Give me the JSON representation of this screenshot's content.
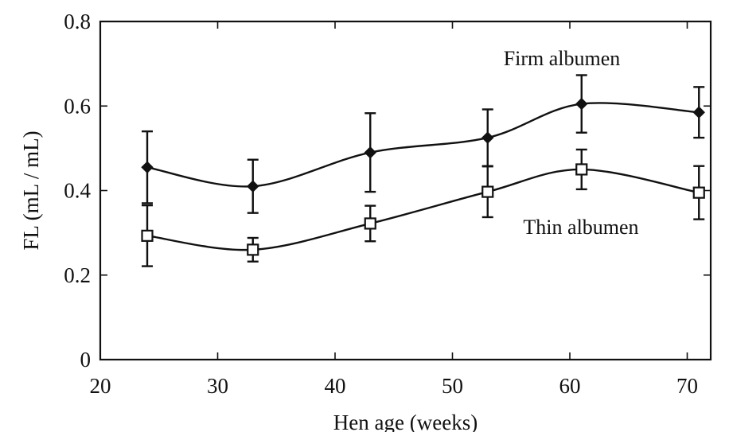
{
  "chart_data": {
    "type": "line",
    "xlabel": "Hen age (weeks)",
    "ylabel": "FL (mL / mL)",
    "xlim": [
      20,
      72
    ],
    "ylim": [
      0,
      0.8
    ],
    "xticks": [
      20,
      30,
      40,
      50,
      60,
      70
    ],
    "yticks": [
      0,
      0.2,
      0.4,
      0.6,
      0.8
    ],
    "ytick_labels": [
      "0",
      "0.2",
      "0.4",
      "0.6",
      "0.8"
    ],
    "grid": false,
    "series": [
      {
        "name": "Firm albumen",
        "marker": "filled-diamond",
        "x": [
          24,
          33,
          43,
          53,
          61,
          71
        ],
        "y": [
          0.455,
          0.41,
          0.49,
          0.525,
          0.605,
          0.585
        ],
        "err": [
          0.085,
          0.063,
          0.093,
          0.067,
          0.068,
          0.06
        ]
      },
      {
        "name": "Thin albumen",
        "marker": "open-square",
        "x": [
          24,
          33,
          43,
          53,
          61,
          71
        ],
        "y": [
          0.293,
          0.26,
          0.322,
          0.397,
          0.45,
          0.395
        ],
        "err": [
          0.072,
          0.028,
          0.042,
          0.06,
          0.047,
          0.063
        ]
      }
    ],
    "color": "#111111"
  }
}
